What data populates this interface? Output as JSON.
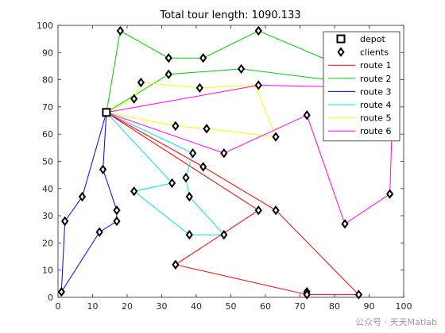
{
  "chart_data": {
    "type": "line",
    "title": "Total tour length: 1090.133",
    "xlim": [
      0,
      100
    ],
    "ylim": [
      0,
      100
    ],
    "xticks": [
      0,
      10,
      20,
      30,
      40,
      50,
      60,
      70,
      80,
      90,
      100
    ],
    "yticks": [
      0,
      10,
      20,
      30,
      40,
      50,
      60,
      70,
      80,
      90,
      100
    ],
    "grid": false,
    "legend_position": "top-right",
    "depot": {
      "x": 14,
      "y": 68
    },
    "legend": [
      {
        "label": "depot",
        "marker": "square"
      },
      {
        "label": "clients",
        "marker": "diamond"
      },
      {
        "label": "route 1",
        "color": "#ff0000"
      },
      {
        "label": "route 2",
        "color": "#00cc00"
      },
      {
        "label": "route 3",
        "color": "#0000ff"
      },
      {
        "label": "route 4",
        "color": "#00e5e5"
      },
      {
        "label": "route 5",
        "color": "#ffff00"
      },
      {
        "label": "route 6",
        "color": "#ff00ff"
      }
    ],
    "series": [
      {
        "name": "route 1",
        "color": "#ff0000",
        "points": [
          [
            14,
            68
          ],
          [
            42,
            48
          ],
          [
            63,
            32
          ],
          [
            87,
            1
          ],
          [
            72,
            1
          ],
          [
            34,
            12
          ],
          [
            58,
            32
          ],
          [
            14,
            68
          ]
        ]
      },
      {
        "name": "route 2",
        "color": "#00cc00",
        "points": [
          [
            14,
            68
          ],
          [
            18,
            98
          ],
          [
            32,
            88
          ],
          [
            42,
            88
          ],
          [
            58,
            98
          ],
          [
            97,
            77
          ],
          [
            53,
            84
          ],
          [
            32,
            82
          ],
          [
            14,
            68
          ]
        ]
      },
      {
        "name": "route 3",
        "color": "#0000ff",
        "points": [
          [
            14,
            68
          ],
          [
            13,
            47
          ],
          [
            17,
            32
          ],
          [
            17,
            28
          ],
          [
            12,
            24
          ],
          [
            1,
            2
          ],
          [
            2,
            28
          ],
          [
            7,
            37
          ],
          [
            14,
            68
          ]
        ]
      },
      {
        "name": "route 4",
        "color": "#00e5e5",
        "points": [
          [
            14,
            68
          ],
          [
            39,
            53
          ],
          [
            37,
            44
          ],
          [
            38,
            37
          ],
          [
            48,
            23
          ],
          [
            38,
            23
          ],
          [
            22,
            39
          ],
          [
            33,
            42
          ],
          [
            14,
            68
          ]
        ]
      },
      {
        "name": "route 5",
        "color": "#ffff00",
        "points": [
          [
            14,
            68
          ],
          [
            34,
            63
          ],
          [
            43,
            62
          ],
          [
            63,
            59
          ],
          [
            57,
            78
          ],
          [
            41,
            77
          ],
          [
            24,
            79
          ],
          [
            22,
            73
          ],
          [
            14,
            68
          ]
        ]
      },
      {
        "name": "route 6",
        "color": "#ff00ff",
        "points": [
          [
            14,
            68
          ],
          [
            58,
            78
          ],
          [
            97,
            77
          ],
          [
            96,
            38
          ],
          [
            83,
            27
          ],
          [
            72,
            67
          ],
          [
            48,
            53
          ],
          [
            14,
            68
          ]
        ]
      }
    ],
    "clients": [
      [
        18,
        98
      ],
      [
        58,
        98
      ],
      [
        32,
        88
      ],
      [
        42,
        88
      ],
      [
        53,
        84
      ],
      [
        32,
        82
      ],
      [
        24,
        79
      ],
      [
        41,
        77
      ],
      [
        58,
        78
      ],
      [
        97,
        77
      ],
      [
        22,
        73
      ],
      [
        72,
        67
      ],
      [
        34,
        63
      ],
      [
        43,
        62
      ],
      [
        63,
        59
      ],
      [
        39,
        53
      ],
      [
        48,
        53
      ],
      [
        42,
        48
      ],
      [
        13,
        47
      ],
      [
        37,
        44
      ],
      [
        33,
        42
      ],
      [
        22,
        39
      ],
      [
        38,
        37
      ],
      [
        7,
        37
      ],
      [
        96,
        38
      ],
      [
        17,
        32
      ],
      [
        58,
        32
      ],
      [
        63,
        32
      ],
      [
        2,
        28
      ],
      [
        17,
        28
      ],
      [
        83,
        27
      ],
      [
        12,
        24
      ],
      [
        38,
        23
      ],
      [
        48,
        23
      ],
      [
        34,
        12
      ],
      [
        1,
        2
      ],
      [
        72,
        2
      ],
      [
        72,
        1
      ],
      [
        87,
        1
      ]
    ]
  },
  "watermark": "公众号 · 天天Matlab"
}
